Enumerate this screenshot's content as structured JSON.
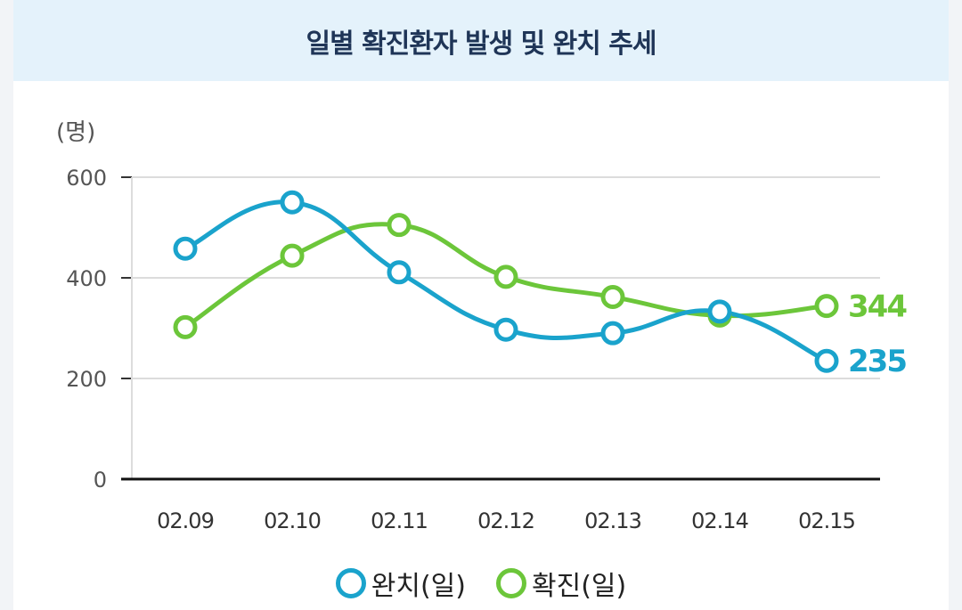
{
  "chart_data": {
    "type": "line",
    "title": "일별 확진환자 발생 및 완치 추세",
    "unit_label": "(명)",
    "categories": [
      "02.09",
      "02.10",
      "02.11",
      "02.12",
      "02.13",
      "02.14",
      "02.15"
    ],
    "ylim": [
      0,
      600
    ],
    "yticks": [
      "0",
      "200",
      "400",
      "600"
    ],
    "grid": true,
    "legend_position": "bottom-center",
    "series": [
      {
        "name": "완치(일)",
        "color": "#1aa3cc",
        "values": [
          458,
          550,
          411,
          297,
          290,
          333,
          235
        ],
        "end_label": "235"
      },
      {
        "name": "확진(일)",
        "color": "#6cc63a",
        "values": [
          302,
          444,
          505,
          402,
          362,
          325,
          344
        ],
        "end_label": "344"
      }
    ]
  }
}
